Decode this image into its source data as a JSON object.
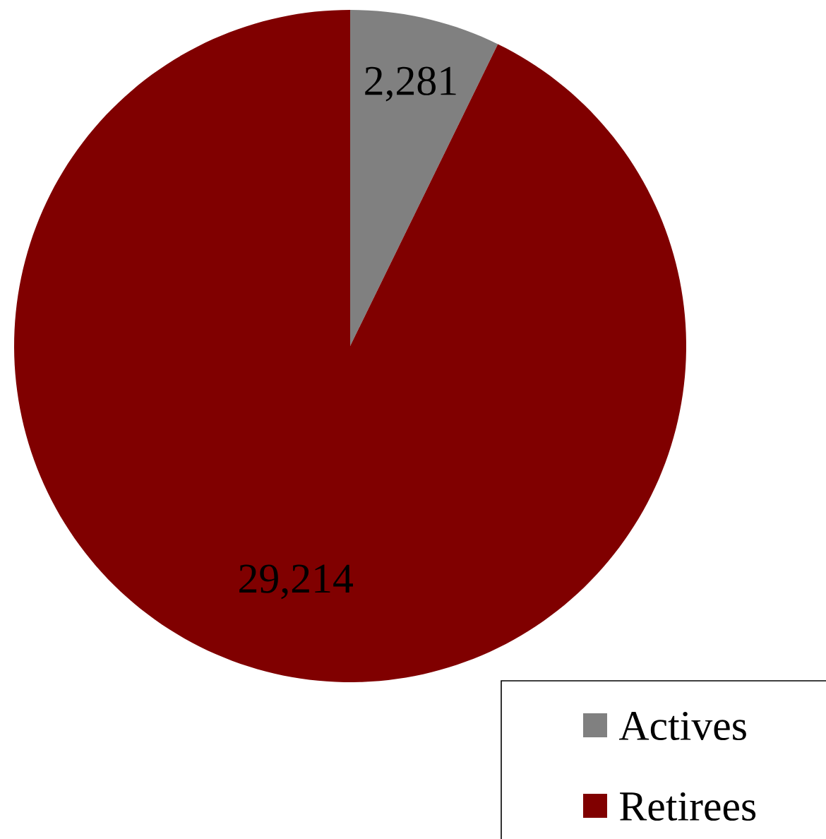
{
  "chart_data": {
    "type": "pie",
    "categories": [
      "Actives",
      "Retirees"
    ],
    "values": [
      2281,
      29214
    ],
    "colors": [
      "#808080",
      "#800000"
    ],
    "value_labels": [
      "2,281",
      "29,214"
    ],
    "legend": "bottom right"
  }
}
